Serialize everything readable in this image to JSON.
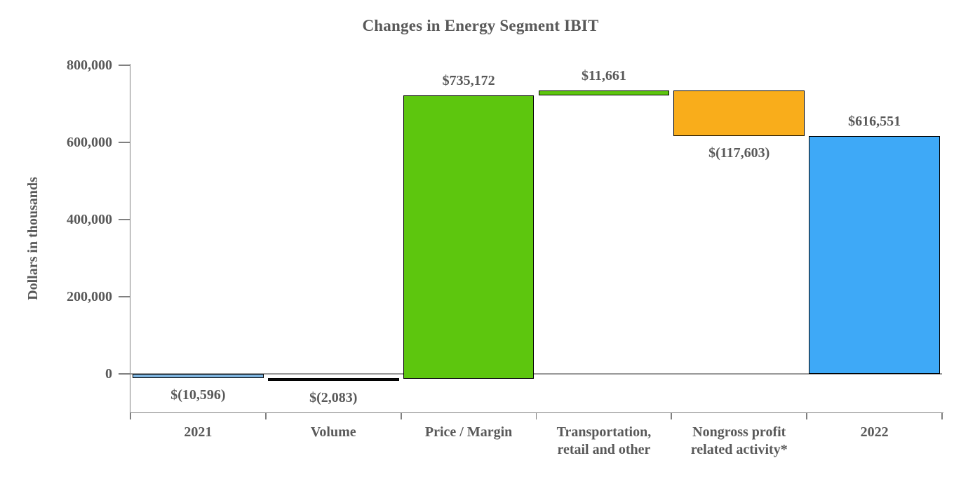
{
  "chart_data": {
    "type": "bar",
    "subtype": "waterfall",
    "title": "Changes in Energy Segment IBIT",
    "ylabel": "Dollars in thousands",
    "xlabel": "",
    "ylim": [
      -12679,
      800000
    ],
    "grid": false,
    "legend": false,
    "yticks": [
      {
        "value": 0,
        "label": "0"
      },
      {
        "value": 200000,
        "label": "200,000"
      },
      {
        "value": 400000,
        "label": "400,000"
      },
      {
        "value": 600000,
        "label": "600,000"
      },
      {
        "value": 800000,
        "label": "800,000"
      }
    ],
    "categories": [
      "2021",
      "Volume",
      "Price / Margin",
      "Transportation,\nretail and other",
      "Nongross profit\nrelated activity*",
      "2022"
    ],
    "bars": [
      {
        "category": "2021",
        "value": -10596,
        "start": 0,
        "end": -10596,
        "data_label": "$(10,596)",
        "label_position": "below",
        "color": "#7FB5E0"
      },
      {
        "category": "Volume",
        "value": -2083,
        "start": -10596,
        "end": -12679,
        "data_label": "$(2,083)",
        "label_position": "below",
        "color": "#0A0A0A"
      },
      {
        "category": "Price / Margin",
        "value": 735172,
        "start": -12679,
        "end": 722493,
        "data_label": "$735,172",
        "label_position": "above",
        "color": "#5DC60E"
      },
      {
        "category": "Transportation,\nretail and other",
        "value": 11661,
        "start": 722493,
        "end": 734154,
        "data_label": "$11,661",
        "label_position": "above",
        "color": "#5DC60E"
      },
      {
        "category": "Nongross profit\nrelated activity*",
        "value": -117603,
        "start": 734154,
        "end": 616551,
        "data_label": "$(117,603)",
        "label_position": "below",
        "color": "#F9AD1B"
      },
      {
        "category": "2022",
        "value": 616551,
        "start": 0,
        "end": 616551,
        "data_label": "$616,551",
        "label_position": "above",
        "color": "#3EA9F7"
      }
    ],
    "colors": {
      "text": "#595959",
      "axis": "#808080",
      "bar_border": "#000000"
    }
  }
}
